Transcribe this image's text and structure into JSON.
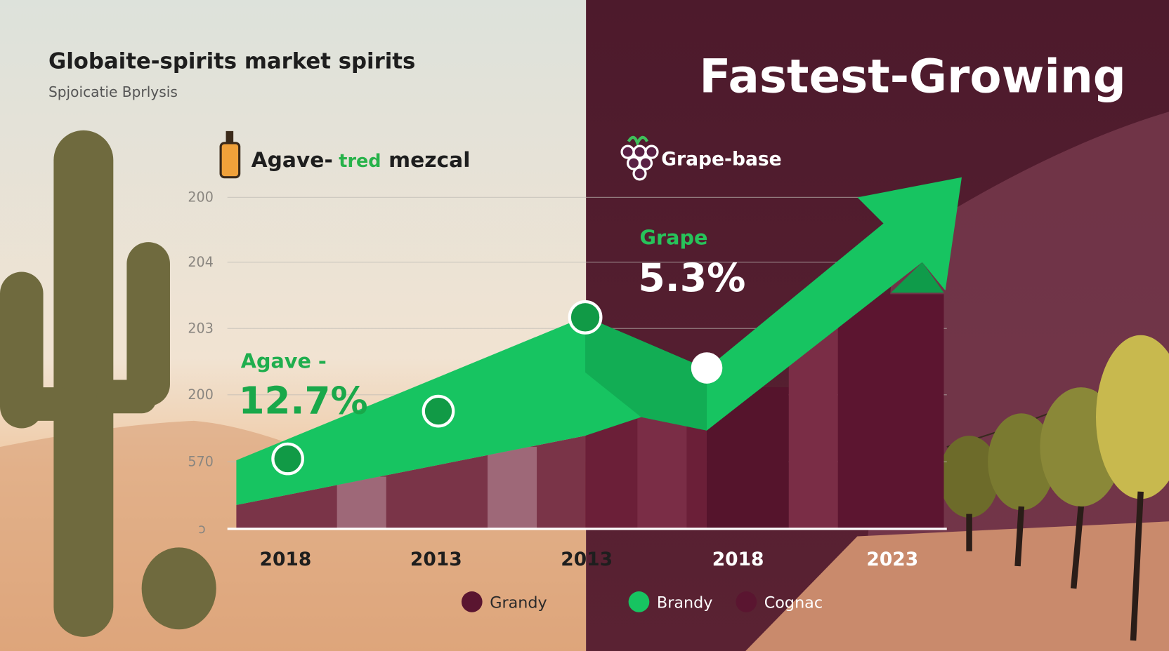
{
  "header": {
    "title": "Globaite-spirits market spirits",
    "subtitle": "Spjoicatie Bprlysis",
    "headline": "Fastest-Growing"
  },
  "panels": {
    "left_label": [
      "Agave-",
      "tred",
      "mezcal"
    ],
    "right_label": "Grape-base"
  },
  "callouts": {
    "agave_label": "Agave -",
    "agave_value": "12.7%",
    "grape_label": "Grape",
    "grape_value": "5.3%"
  },
  "axis": {
    "y_labels": [
      "200",
      "204",
      "203",
      "200",
      "570",
      "ɔ"
    ],
    "x_labels": [
      "2018",
      "2013",
      "2013",
      "2018",
      "2023"
    ]
  },
  "legend": [
    "Grandy",
    "Brandy",
    "Cognac"
  ]
}
